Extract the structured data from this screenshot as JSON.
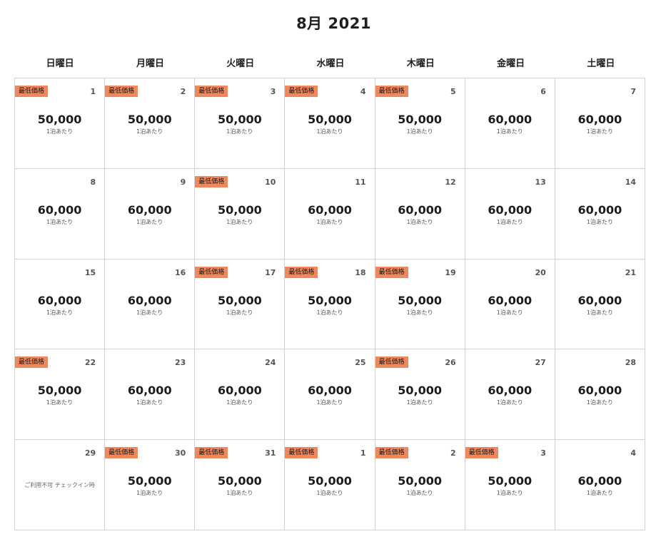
{
  "calendar": {
    "title": "8月 2021",
    "weekdays": [
      "日曜日",
      "月曜日",
      "火曜日",
      "水曜日",
      "木曜日",
      "金曜日",
      "土曜日"
    ],
    "badge_label": "最低価格",
    "price_unit": "1泊あたり",
    "unavailable_label": "ご利用不可 チェックイン時",
    "days": [
      {
        "day": "1",
        "price": "50,000",
        "lowest": true
      },
      {
        "day": "2",
        "price": "50,000",
        "lowest": true
      },
      {
        "day": "3",
        "price": "50,000",
        "lowest": true
      },
      {
        "day": "4",
        "price": "50,000",
        "lowest": true
      },
      {
        "day": "5",
        "price": "50,000",
        "lowest": true
      },
      {
        "day": "6",
        "price": "60,000",
        "lowest": false
      },
      {
        "day": "7",
        "price": "60,000",
        "lowest": false
      },
      {
        "day": "8",
        "price": "60,000",
        "lowest": false
      },
      {
        "day": "9",
        "price": "60,000",
        "lowest": false
      },
      {
        "day": "10",
        "price": "50,000",
        "lowest": true
      },
      {
        "day": "11",
        "price": "60,000",
        "lowest": false
      },
      {
        "day": "12",
        "price": "60,000",
        "lowest": false
      },
      {
        "day": "13",
        "price": "60,000",
        "lowest": false
      },
      {
        "day": "14",
        "price": "60,000",
        "lowest": false
      },
      {
        "day": "15",
        "price": "60,000",
        "lowest": false
      },
      {
        "day": "16",
        "price": "60,000",
        "lowest": false
      },
      {
        "day": "17",
        "price": "50,000",
        "lowest": true
      },
      {
        "day": "18",
        "price": "50,000",
        "lowest": true
      },
      {
        "day": "19",
        "price": "50,000",
        "lowest": true
      },
      {
        "day": "20",
        "price": "60,000",
        "lowest": false
      },
      {
        "day": "21",
        "price": "60,000",
        "lowest": false
      },
      {
        "day": "22",
        "price": "50,000",
        "lowest": true
      },
      {
        "day": "23",
        "price": "60,000",
        "lowest": false
      },
      {
        "day": "24",
        "price": "60,000",
        "lowest": false
      },
      {
        "day": "25",
        "price": "60,000",
        "lowest": false
      },
      {
        "day": "26",
        "price": "50,000",
        "lowest": true
      },
      {
        "day": "27",
        "price": "60,000",
        "lowest": false
      },
      {
        "day": "28",
        "price": "60,000",
        "lowest": false
      },
      {
        "day": "29",
        "price": "",
        "lowest": false,
        "unavailable": true
      },
      {
        "day": "30",
        "price": "50,000",
        "lowest": true
      },
      {
        "day": "31",
        "price": "50,000",
        "lowest": true
      },
      {
        "day": "1",
        "price": "50,000",
        "lowest": true
      },
      {
        "day": "2",
        "price": "50,000",
        "lowest": true
      },
      {
        "day": "3",
        "price": "50,000",
        "lowest": true
      },
      {
        "day": "4",
        "price": "60,000",
        "lowest": false
      }
    ]
  }
}
